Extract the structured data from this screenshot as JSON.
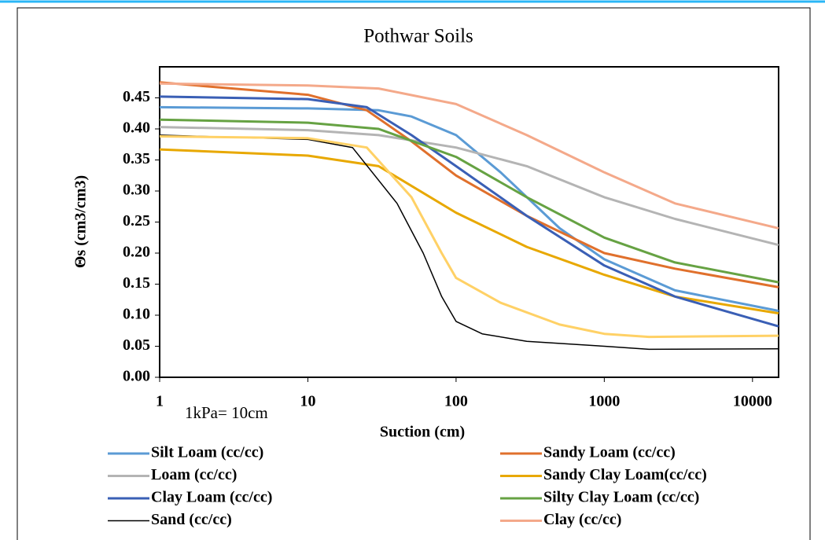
{
  "chart_data": {
    "type": "line",
    "title": "Pothwar Soils",
    "x_label": "Suction (cm)",
    "y_label": "Θs (cm3/cm3)",
    "annotation": "1kPa= 10cm",
    "log_x": true,
    "grid": false,
    "xlim": [
      1,
      15000
    ],
    "xticks": [
      1,
      10,
      100,
      1000,
      10000
    ],
    "ylim": [
      0,
      0.5
    ],
    "yticks": [
      {
        "value": 0,
        "label": "0.00"
      },
      {
        "value": 0.05,
        "label": "0.05"
      },
      {
        "value": 0.1,
        "label": "0.10"
      },
      {
        "value": 0.15,
        "label": "0.15"
      },
      {
        "value": 0.2,
        "label": "0.20"
      },
      {
        "value": 0.25,
        "label": "0.25"
      },
      {
        "value": 0.3,
        "label": "0.30"
      },
      {
        "value": 0.35,
        "label": "0.35"
      },
      {
        "value": 0.4,
        "label": "0.40"
      },
      {
        "value": 0.45,
        "label": "0.45"
      }
    ],
    "series": [
      {
        "name": "Silt Loam (cc/cc)",
        "color": "#5b9bd5",
        "x": [
          1,
          10,
          30,
          50,
          100,
          200,
          500,
          1000,
          3000,
          15000
        ],
        "values": [
          0.435,
          0.433,
          0.43,
          0.42,
          0.39,
          0.33,
          0.24,
          0.19,
          0.14,
          0.107
        ]
      },
      {
        "name": "Sandy Loam (cc/cc)",
        "color": "#e0702c",
        "x": [
          1,
          10,
          25,
          50,
          100,
          300,
          1000,
          3000,
          15000
        ],
        "values": [
          0.475,
          0.455,
          0.43,
          0.38,
          0.325,
          0.26,
          0.2,
          0.175,
          0.145
        ]
      },
      {
        "name": "Loam (cc/cc)",
        "color": "#b4b4b4",
        "x": [
          1,
          10,
          30,
          100,
          300,
          1000,
          3000,
          15000
        ],
        "values": [
          0.403,
          0.398,
          0.39,
          0.37,
          0.34,
          0.29,
          0.255,
          0.213
        ]
      },
      {
        "name": "Sandy Clay Loam(cc/cc)",
        "color": "#e8a800",
        "x": [
          1,
          10,
          30,
          100,
          300,
          1000,
          3000,
          15000
        ],
        "values": [
          0.367,
          0.357,
          0.34,
          0.265,
          0.21,
          0.165,
          0.13,
          0.103
        ]
      },
      {
        "name": "Clay Loam (cc/cc)",
        "color": "#3a5fb5",
        "x": [
          1,
          10,
          25,
          50,
          100,
          300,
          1000,
          3000,
          15000
        ],
        "values": [
          0.452,
          0.448,
          0.435,
          0.39,
          0.34,
          0.26,
          0.18,
          0.13,
          0.082
        ]
      },
      {
        "name": "Silty Clay Loam (cc/cc)",
        "color": "#66a243",
        "x": [
          1,
          10,
          30,
          100,
          300,
          1000,
          3000,
          15000
        ],
        "values": [
          0.415,
          0.41,
          0.4,
          0.355,
          0.29,
          0.225,
          0.185,
          0.153
        ]
      },
      {
        "name": "Sand (cc/cc)",
        "color": "#000000",
        "x": [
          1,
          10,
          20,
          40,
          60,
          80,
          100,
          150,
          300,
          1000,
          2000,
          15000
        ],
        "values": [
          0.39,
          0.383,
          0.37,
          0.28,
          0.2,
          0.13,
          0.09,
          0.07,
          0.058,
          0.05,
          0.045,
          0.046
        ]
      },
      {
        "name": "Clay (cc/cc)",
        "color": "#f4a98a",
        "x": [
          1,
          10,
          30,
          100,
          300,
          1000,
          3000,
          15000
        ],
        "values": [
          0.473,
          0.47,
          0.465,
          0.44,
          0.39,
          0.33,
          0.28,
          0.24
        ]
      },
      {
        "color": "#ffd166",
        "x": [
          1,
          10,
          25,
          50,
          80,
          100,
          200,
          500,
          1000,
          2000,
          15000
        ],
        "values": [
          0.388,
          0.385,
          0.37,
          0.29,
          0.2,
          0.16,
          0.12,
          0.085,
          0.07,
          0.065,
          0.067
        ]
      }
    ]
  }
}
